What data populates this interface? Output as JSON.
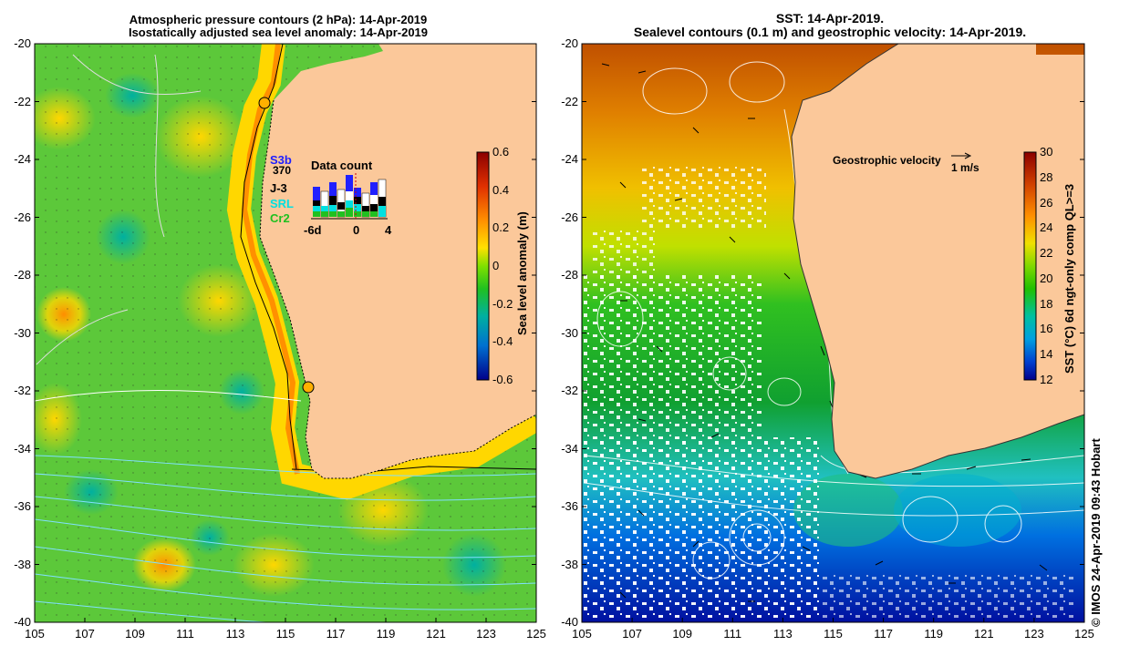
{
  "left_panel": {
    "title_line1": "Atmospheric pressure contours (2 hPa): 14-Apr-2019",
    "title_line2": "Isostatically adjusted sea level anomaly: 14-Apr-2019",
    "y_ticks": [
      "-20",
      "-22",
      "-24",
      "-26",
      "-28",
      "-30",
      "-32",
      "-34",
      "-36",
      "-38",
      "-40"
    ],
    "x_ticks": [
      "105",
      "107",
      "109",
      "111",
      "113",
      "115",
      "117",
      "119",
      "121",
      "123",
      "125"
    ],
    "colorbar": {
      "label": "Sea level anomaly (m)",
      "ticks": [
        "0.6",
        "0.4",
        "0.2",
        "0",
        "-0.2",
        "-0.4",
        "-0.6"
      ],
      "colors": [
        "#8b0000",
        "#e03000",
        "#ff8c00",
        "#ffd700",
        "#d8f000",
        "#32cd32",
        "#00b0a0",
        "#0080d0",
        "#0000a0"
      ]
    },
    "legend": {
      "s3b": "S3b",
      "s3b_count": "370",
      "j3": "J-3",
      "srl": "SRL",
      "cr2": "Cr2",
      "title": "Data count",
      "axis_labels": [
        "-6d",
        "0",
        "4"
      ],
      "colors": {
        "s3b": "#2020ff",
        "j3": "#000000",
        "srl": "#00e0e0",
        "cr2": "#20c020"
      }
    }
  },
  "right_panel": {
    "title_line1": "SST: 14-Apr-2019.",
    "title_line2": "Sealevel contours (0.1 m) and geostrophic velocity: 14-Apr-2019.",
    "y_ticks": [
      "-20",
      "-22",
      "-24",
      "-26",
      "-28",
      "-30",
      "-32",
      "-34",
      "-36",
      "-38",
      "-40"
    ],
    "x_ticks": [
      "105",
      "107",
      "109",
      "111",
      "113",
      "115",
      "117",
      "119",
      "121",
      "123",
      "125"
    ],
    "velocity_label": "Geostrophic velocity",
    "velocity_scale": "1 m/s",
    "colorbar": {
      "label": "SST (°C) 6d ngt-only comp QL>=3",
      "ticks": [
        "30",
        "28",
        "26",
        "24",
        "22",
        "20",
        "18",
        "16",
        "14",
        "12"
      ],
      "colors": [
        "#8b0000",
        "#d04000",
        "#ff9000",
        "#f0e000",
        "#a0e000",
        "#20c000",
        "#00c0a0",
        "#00a0e0",
        "#0040d0",
        "#00008b"
      ]
    }
  },
  "credit": "© IMOS 24-Apr-2019 09:43 Hobart",
  "colors": {
    "land": "#fbc89a"
  }
}
